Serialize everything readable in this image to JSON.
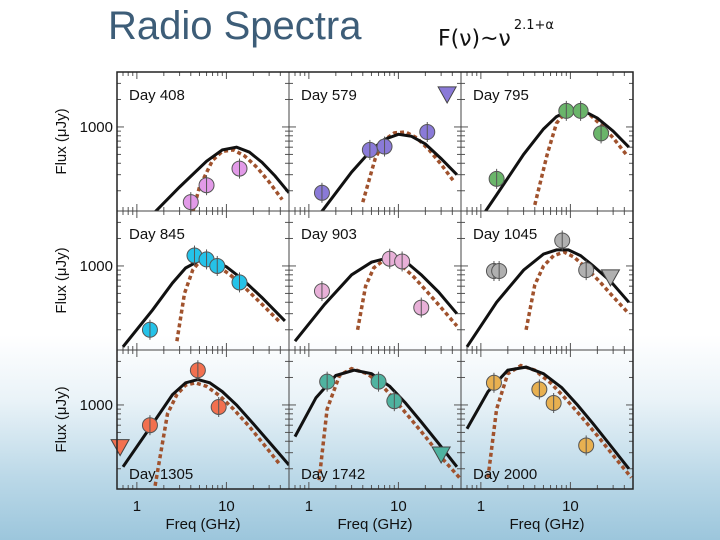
{
  "title": "Radio Spectra",
  "formula": {
    "base": "F(ν)~ν",
    "exponent": "2.1+α"
  },
  "xlabel": "Freq (GHz)",
  "ylabel": "Flux (μJy)",
  "x_tick_labels": [
    "1",
    "10"
  ],
  "y_tick_label": "1000",
  "colors": {
    "model": "#111111",
    "dashed": "#a0522d",
    "frame": "#444444"
  },
  "chart_data": {
    "type": "scatter",
    "xscale": "log",
    "yscale": "log",
    "xlim": [
      0.6,
      50
    ],
    "ylim": [
      120,
      4000
    ],
    "panels": [
      {
        "label": "Day 408",
        "label_pos": "top",
        "color": "#e29ae8",
        "points": [
          [
            4,
            150
          ],
          [
            6,
            230
          ],
          [
            14,
            350
          ]
        ],
        "limits": [],
        "model": [
          [
            0.7,
            55
          ],
          [
            1.5,
            110
          ],
          [
            3,
            220
          ],
          [
            6,
            420
          ],
          [
            9,
            560
          ],
          [
            13,
            600
          ],
          [
            18,
            530
          ],
          [
            25,
            410
          ],
          [
            35,
            290
          ],
          [
            50,
            190
          ]
        ],
        "dashed": [
          [
            3.5,
            60
          ],
          [
            5,
            220
          ],
          [
            7,
            430
          ],
          [
            9,
            540
          ],
          [
            12,
            560
          ],
          [
            16,
            480
          ],
          [
            22,
            360
          ],
          [
            30,
            250
          ],
          [
            42,
            160
          ]
        ]
      },
      {
        "label": "Day 579",
        "label_pos": "top",
        "color": "#8a7ad8",
        "points": [
          [
            1.4,
            190
          ],
          [
            4.8,
            560
          ],
          [
            7,
            610
          ],
          [
            21,
            880
          ]
        ],
        "limits": [
          [
            35,
            2300
          ]
        ],
        "model": [
          [
            0.7,
            50
          ],
          [
            1.5,
            130
          ],
          [
            3,
            320
          ],
          [
            5,
            560
          ],
          [
            7,
            730
          ],
          [
            10,
            830
          ],
          [
            14,
            790
          ],
          [
            20,
            650
          ],
          [
            30,
            450
          ],
          [
            45,
            300
          ]
        ],
        "dashed": [
          [
            4,
            150
          ],
          [
            5.5,
            450
          ],
          [
            7,
            720
          ],
          [
            9,
            860
          ],
          [
            12,
            880
          ],
          [
            16,
            760
          ],
          [
            22,
            560
          ],
          [
            30,
            390
          ],
          [
            42,
            250
          ]
        ]
      },
      {
        "label": "Day 795",
        "label_pos": "top",
        "color": "#6ab56a",
        "points": [
          [
            1.5,
            270
          ],
          [
            9,
            1500
          ],
          [
            13,
            1500
          ],
          [
            22,
            850
          ]
        ],
        "limits": [],
        "model": [
          [
            0.7,
            60
          ],
          [
            1.5,
            180
          ],
          [
            3,
            500
          ],
          [
            5,
            950
          ],
          [
            7,
            1300
          ],
          [
            10,
            1550
          ],
          [
            14,
            1500
          ],
          [
            20,
            1250
          ],
          [
            30,
            900
          ],
          [
            45,
            600
          ]
        ],
        "dashed": [
          [
            4,
            140
          ],
          [
            5.5,
            500
          ],
          [
            7,
            1100
          ],
          [
            9,
            1480
          ],
          [
            12,
            1600
          ],
          [
            16,
            1400
          ],
          [
            22,
            1050
          ],
          [
            30,
            760
          ],
          [
            42,
            500
          ]
        ]
      },
      {
        "label": "Day 845",
        "label_pos": "top",
        "color": "#25c2e8",
        "points": [
          [
            1.4,
            200
          ],
          [
            4.4,
            1300
          ],
          [
            6,
            1180
          ],
          [
            7.9,
            1000
          ],
          [
            14,
            660
          ]
        ],
        "limits": [],
        "model": [
          [
            0.7,
            130
          ],
          [
            1.5,
            330
          ],
          [
            2.5,
            650
          ],
          [
            3.5,
            950
          ],
          [
            5,
            1150
          ],
          [
            7,
            1150
          ],
          [
            10,
            980
          ],
          [
            15,
            720
          ],
          [
            25,
            450
          ],
          [
            45,
            250
          ]
        ],
        "dashed": [
          [
            2.8,
            150
          ],
          [
            3.4,
            500
          ],
          [
            4.2,
            900
          ],
          [
            5,
            1120
          ],
          [
            6,
            1150
          ],
          [
            8,
            1000
          ],
          [
            11,
            800
          ],
          [
            16,
            580
          ],
          [
            25,
            380
          ],
          [
            40,
            240
          ]
        ]
      },
      {
        "label": "Day 903",
        "label_pos": "top",
        "color": "#e8b0d8",
        "points": [
          [
            1.4,
            530
          ],
          [
            8,
            1200
          ],
          [
            11,
            1120
          ],
          [
            18,
            350
          ]
        ],
        "limits": [],
        "model": [
          [
            0.7,
            150
          ],
          [
            1.5,
            380
          ],
          [
            3,
            800
          ],
          [
            5,
            1100
          ],
          [
            7,
            1200
          ],
          [
            9.5,
            1200
          ],
          [
            13,
            1050
          ],
          [
            18,
            800
          ],
          [
            28,
            520
          ],
          [
            45,
            300
          ]
        ],
        "dashed": [
          [
            3.5,
            200
          ],
          [
            4.3,
            600
          ],
          [
            5.3,
            950
          ],
          [
            6.8,
            1150
          ],
          [
            8.5,
            1180
          ],
          [
            11,
            1000
          ],
          [
            15,
            750
          ],
          [
            21,
            520
          ],
          [
            30,
            350
          ],
          [
            45,
            220
          ]
        ]
      },
      {
        "label": "Day 1045",
        "label_pos": "top",
        "color": "#b0b0b0",
        "points": [
          [
            1.4,
            880
          ],
          [
            1.6,
            880
          ],
          [
            8.1,
            1900
          ],
          [
            15,
            900
          ]
        ],
        "limits": [
          [
            28,
            760
          ]
        ],
        "model": [
          [
            0.7,
            130
          ],
          [
            1.5,
            400
          ],
          [
            3,
            900
          ],
          [
            5,
            1350
          ],
          [
            7,
            1500
          ],
          [
            9.5,
            1500
          ],
          [
            13,
            1300
          ],
          [
            18,
            1000
          ],
          [
            28,
            680
          ],
          [
            45,
            400
          ]
        ],
        "dashed": [
          [
            3.2,
            200
          ],
          [
            4,
            620
          ],
          [
            5,
            1000
          ],
          [
            6.5,
            1300
          ],
          [
            8.5,
            1420
          ],
          [
            11,
            1250
          ],
          [
            15,
            950
          ],
          [
            21,
            680
          ],
          [
            30,
            460
          ],
          [
            45,
            300
          ]
        ]
      },
      {
        "label": "Day 1305",
        "label_pos": "bottom",
        "color": "#f2704f",
        "points": [
          [
            1.4,
            600
          ],
          [
            4.8,
            2400
          ],
          [
            8.2,
            950
          ]
        ],
        "limits": [
          [
            0.65,
            350
          ]
        ],
        "model": [
          [
            0.7,
            210
          ],
          [
            1.5,
            620
          ],
          [
            2.5,
            1300
          ],
          [
            3.5,
            1750
          ],
          [
            4.8,
            1900
          ],
          [
            6.5,
            1750
          ],
          [
            9,
            1400
          ],
          [
            13,
            1000
          ],
          [
            20,
            620
          ],
          [
            35,
            330
          ],
          [
            50,
            220
          ]
        ],
        "dashed": [
          [
            1.6,
            130
          ],
          [
            2.2,
            800
          ],
          [
            2.8,
            1300
          ],
          [
            3.5,
            1650
          ],
          [
            4.5,
            1750
          ],
          [
            6,
            1600
          ],
          [
            8.5,
            1250
          ],
          [
            12,
            900
          ],
          [
            18,
            580
          ],
          [
            28,
            340
          ],
          [
            40,
            220
          ]
        ]
      },
      {
        "label": "Day 1742",
        "label_pos": "bottom",
        "color": "#4fb3a0",
        "points": [
          [
            1.6,
            1800
          ],
          [
            6,
            1800
          ],
          [
            9,
            1100
          ]
        ],
        "limits": [
          [
            30,
            290
          ]
        ],
        "model": [
          [
            0.7,
            450
          ],
          [
            1.2,
            1200
          ],
          [
            2,
            2100
          ],
          [
            3.2,
            2400
          ],
          [
            5,
            2200
          ],
          [
            8,
            1600
          ],
          [
            12,
            1050
          ],
          [
            18,
            650
          ],
          [
            28,
            380
          ],
          [
            45,
            210
          ]
        ],
        "dashed": [
          [
            1.3,
            150
          ],
          [
            1.6,
            900
          ],
          [
            2.2,
            2100
          ],
          [
            3,
            2500
          ],
          [
            4.5,
            2200
          ],
          [
            6.5,
            1650
          ],
          [
            9,
            1150
          ],
          [
            13,
            750
          ],
          [
            20,
            450
          ],
          [
            32,
            250
          ],
          [
            48,
            160
          ]
        ]
      },
      {
        "label": "Day 2000",
        "label_pos": "bottom",
        "color": "#e8b050",
        "points": [
          [
            1.4,
            1750
          ],
          [
            4.5,
            1480
          ],
          [
            6.5,
            1050
          ],
          [
            15,
            360
          ]
        ],
        "limits": [],
        "model": [
          [
            0.7,
            550
          ],
          [
            1.2,
            1400
          ],
          [
            2,
            2400
          ],
          [
            3.2,
            2600
          ],
          [
            5,
            2200
          ],
          [
            8,
            1550
          ],
          [
            12,
            1000
          ],
          [
            18,
            620
          ],
          [
            28,
            360
          ],
          [
            45,
            200
          ]
        ],
        "dashed": [
          [
            1.2,
            160
          ],
          [
            1.5,
            900
          ],
          [
            2,
            2200
          ],
          [
            2.8,
            2700
          ],
          [
            4,
            2400
          ],
          [
            6,
            1750
          ],
          [
            9,
            1150
          ],
          [
            13,
            760
          ],
          [
            20,
            460
          ],
          [
            32,
            260
          ],
          [
            48,
            160
          ]
        ]
      }
    ]
  }
}
